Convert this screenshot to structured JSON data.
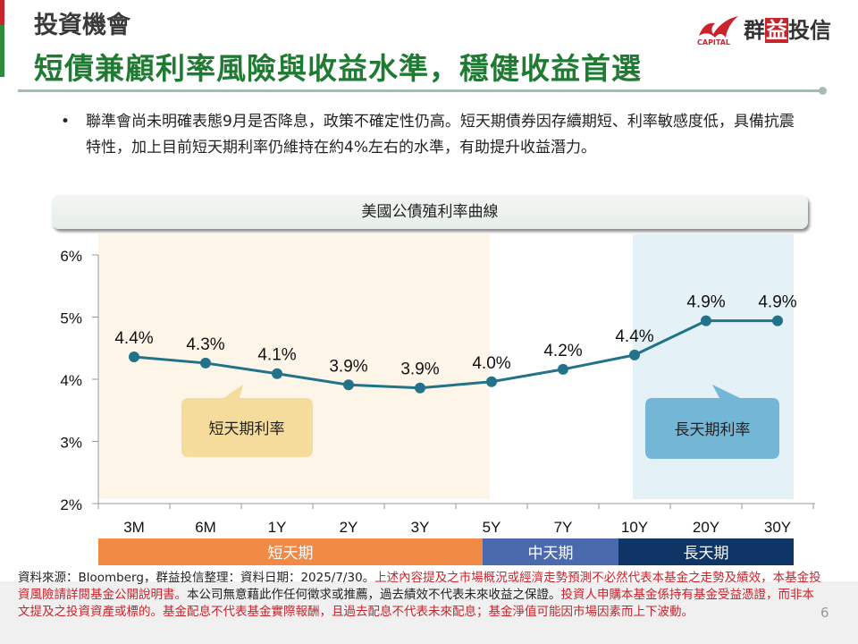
{
  "header": {
    "section": "投資機會",
    "headline": "短債兼顧利率風險與收益水準，穩健收益首選",
    "logo_caption": "CAPITAL",
    "logo_name_a": "群",
    "logo_name_b": "益",
    "logo_name_c": "投信"
  },
  "bullet": {
    "marker": "•",
    "text": "聯準會尚未明確表態9月是否降息，政策不確定性仍高。短天期債券因存續期短、利率敏感度低，具備抗震特性，加上目前短天期利率仍維持在約4%左右的水準，有助提升收益潛力。"
  },
  "chart_data": {
    "type": "line",
    "title": "美國公債殖利率曲線",
    "categories": [
      "3M",
      "6M",
      "1Y",
      "2Y",
      "3Y",
      "5Y",
      "7Y",
      "10Y",
      "20Y",
      "30Y"
    ],
    "values": [
      4.36,
      4.26,
      4.09,
      3.91,
      3.86,
      3.96,
      4.16,
      4.39,
      4.94,
      4.94
    ],
    "data_labels": [
      "4.4%",
      "4.3%",
      "4.1%",
      "3.9%",
      "3.9%",
      "4.0%",
      "4.2%",
      "4.4%",
      "4.9%",
      "4.9%"
    ],
    "ylim": [
      2,
      6
    ],
    "yticks": [
      "2%",
      "3%",
      "4%",
      "5%",
      "6%"
    ],
    "callouts": {
      "short": "短天期利率",
      "long": "長天期利率"
    },
    "bands": {
      "short": "短天期",
      "mid": "中天期",
      "long": "長天期"
    },
    "colors": {
      "line": "#22738a",
      "short_shade": "#fdf5e8",
      "long_shade": "#e4f1f7",
      "short_callout": "#f6dc9c",
      "long_callout": "#74b6d6",
      "short_band": "#f08a44",
      "mid_band": "#4b69ad",
      "long_band": "#0f3566"
    }
  },
  "footer": {
    "source": "資料來源：Bloomberg，群益投信整理：資料日期：2025/7/30。",
    "red1": "上述內容提及之市場概況或經濟走勢預測不必然代表本基金之走勢及績效，本基金投資風險請詳閱基金公開說明書。",
    "black2": "本公司無意藉此作任何徵求或推薦，過去績效不代表未來收益之保證。",
    "red2": "投資人申購本基金係持有基金受益憑證，而非本文提及之投資資產或標的。基金配息不代表基金實際報酬，且過去配息不代表未來配息；基金淨值可能因市場因素而上下波動。",
    "page": "6"
  }
}
